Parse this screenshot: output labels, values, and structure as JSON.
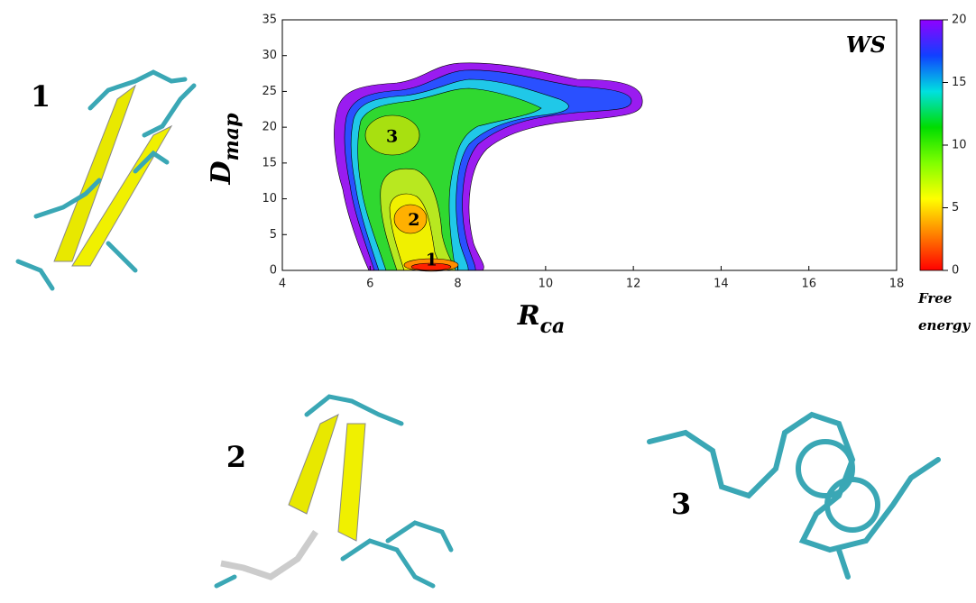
{
  "chart_data": {
    "type": "contour",
    "annotation": "WS",
    "xlabel": {
      "text": "R",
      "subscript": "ca"
    },
    "ylabel": {
      "text": "D",
      "subscript": "map"
    },
    "xlim": [
      4,
      18
    ],
    "xticks": [
      4,
      6,
      8,
      10,
      12,
      14,
      16,
      18
    ],
    "ylim": [
      0,
      35
    ],
    "yticks": [
      0,
      5,
      10,
      15,
      20,
      25,
      30,
      35
    ],
    "colorbar": {
      "label": [
        "Free",
        "energy"
      ],
      "lim": [
        0,
        20
      ],
      "ticks": [
        0,
        5,
        10,
        15,
        20
      ],
      "colormap": [
        "#ff0000",
        "#ff8000",
        "#ffff00",
        "#80ff00",
        "#00dd00",
        "#00e0e0",
        "#1040ff",
        "#9000ff"
      ]
    },
    "minima": {
      "labels": [
        "1",
        "2",
        "3"
      ],
      "x": [
        7.4,
        7.0,
        6.5
      ],
      "y": [
        1.3,
        6.9,
        18.6
      ]
    }
  },
  "structures": {
    "labels": [
      "1",
      "2",
      "3"
    ]
  }
}
